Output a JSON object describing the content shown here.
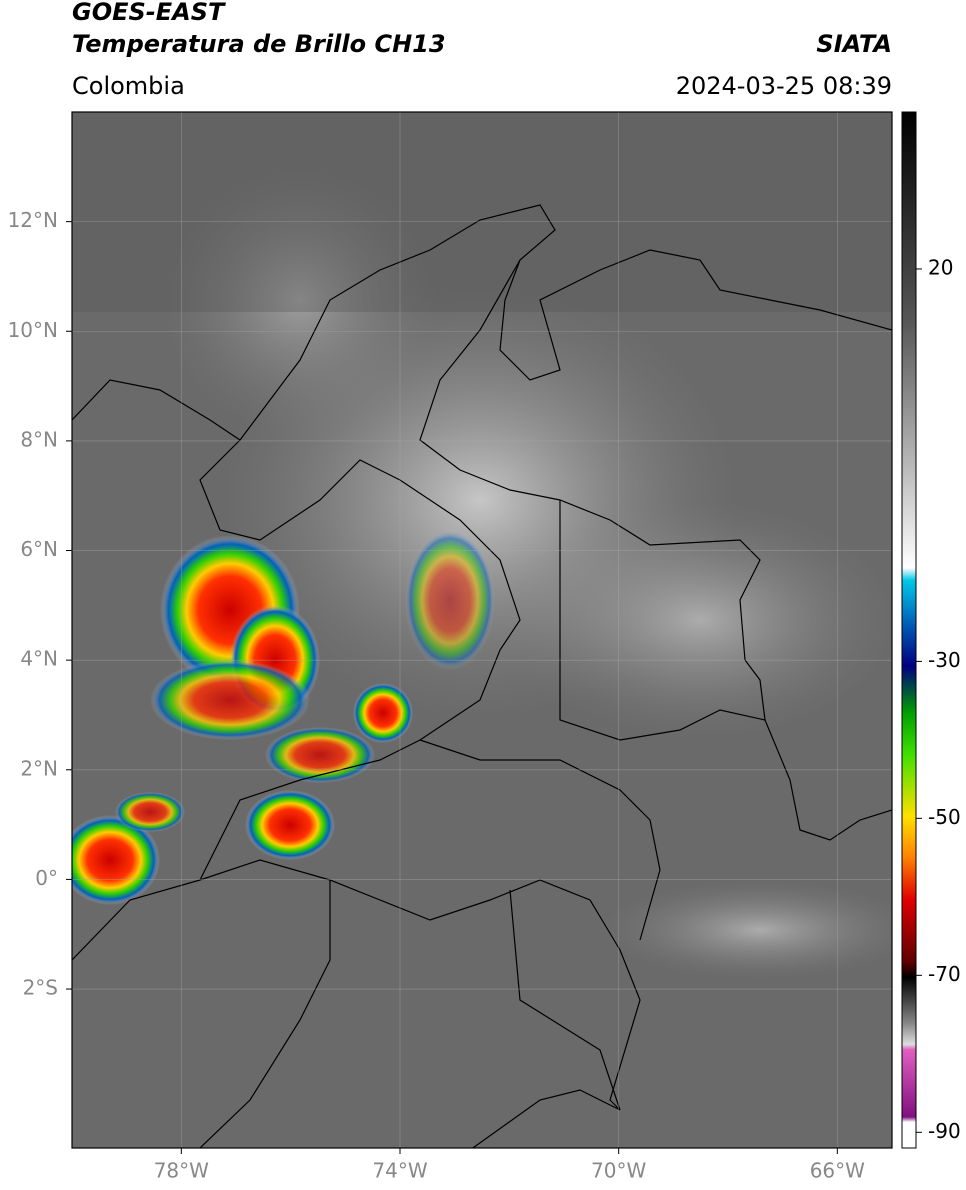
{
  "header": {
    "title": "GOES-EAST",
    "subtitle": "Temperatura de Brillo CH13",
    "region": "Colombia",
    "source": "SIATA",
    "datetime": "2024-03-25 08:39"
  },
  "map": {
    "lon_lim": [
      -80,
      -65
    ],
    "lat_lim": [
      -4.9,
      14
    ],
    "lat_ticks": [
      {
        "value": 12,
        "label": "12°N"
      },
      {
        "value": 10,
        "label": "10°N"
      },
      {
        "value": 8,
        "label": "8°N"
      },
      {
        "value": 6,
        "label": "6°N"
      },
      {
        "value": 4,
        "label": "4°N"
      },
      {
        "value": 2,
        "label": "2°N"
      },
      {
        "value": 0,
        "label": "0°"
      },
      {
        "value": -2,
        "label": "2°S"
      }
    ],
    "lon_ticks": [
      {
        "value": -78,
        "label": "78°W"
      },
      {
        "value": -74,
        "label": "74°W"
      },
      {
        "value": -70,
        "label": "70°W"
      },
      {
        "value": -66,
        "label": "66°W"
      }
    ]
  },
  "colorbar": {
    "lim": [
      -92,
      40
    ],
    "ticks": [
      20,
      -30,
      -50,
      -70,
      -90
    ]
  }
}
